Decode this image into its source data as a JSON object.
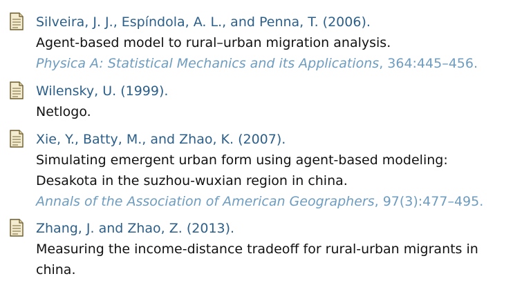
{
  "references": [
    {
      "authors": "Silveira, J. J., Espíndola, A. L., and Penna, T. (2006).",
      "title_lines": [
        "Agent-based model to rural–urban migration analysis."
      ],
      "journal": "Physica A: Statistical Mechanics and its Applications",
      "details": ", 364:445–456."
    },
    {
      "authors": "Wilensky, U. (1999).",
      "title_lines": [
        "Netlogo."
      ],
      "journal": "",
      "details": ""
    },
    {
      "authors": "Xie, Y., Batty, M., and Zhao, K. (2007).",
      "title_lines": [
        "Simulating emergent urban form using agent-based modeling:",
        "Desakota in the suzhou-wuxian region in china."
      ],
      "journal": "Annals of the Association of American Geographers",
      "details": ", 97(3):477–495."
    },
    {
      "authors": "Zhang, J. and Zhao, Z. (2013).",
      "title_lines": [
        "Measuring the income-distance tradeoff for rural-urban migrants in",
        "china."
      ],
      "journal": "",
      "details": ""
    }
  ],
  "colors": {
    "authors": "#2b5f8a",
    "title": "#111111",
    "venue": "#6d9cc0"
  },
  "icons": [
    "document-icon"
  ]
}
